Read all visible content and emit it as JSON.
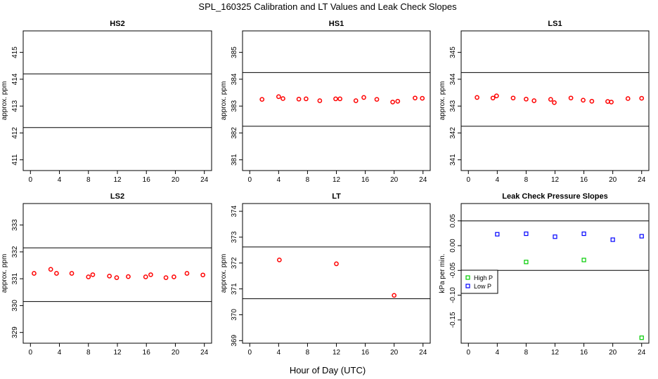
{
  "title": "SPL_160325  Calibration and LT Values and Leak Check Slopes",
  "xlabel_common": "Hour of Day (UTC)",
  "colors": {
    "red": "#ff0000",
    "green": "#00cc00",
    "blue": "#0000ff",
    "axis": "#000000"
  },
  "chart_data": [
    {
      "id": "hs2",
      "type": "scatter",
      "title": "HS2",
      "ylabel": "approx. ppm",
      "xlim": [
        -1,
        25
      ],
      "ylim": [
        410.6,
        415.8
      ],
      "xticks": [
        0,
        4,
        8,
        12,
        16,
        20,
        24
      ],
      "xtick_labels": [
        "0",
        "4",
        "8",
        "12",
        "16",
        "20",
        "24"
      ],
      "yticks": [
        411,
        412,
        413,
        414,
        415
      ],
      "ytick_labels": [
        "411",
        "412",
        "413",
        "414",
        "415"
      ],
      "hlines": [
        412.2,
        414.2
      ],
      "series": []
    },
    {
      "id": "hs1",
      "type": "scatter",
      "title": "HS1",
      "ylabel": "approx. ppm",
      "xlim": [
        -1,
        25
      ],
      "ylim": [
        380.6,
        385.8
      ],
      "xticks": [
        0,
        4,
        8,
        12,
        16,
        20,
        24
      ],
      "xtick_labels": [
        "0",
        "4",
        "8",
        "12",
        "16",
        "20",
        "24"
      ],
      "yticks": [
        381,
        382,
        383,
        384,
        385
      ],
      "ytick_labels": [
        "381",
        "382",
        "383",
        "384",
        "385"
      ],
      "hlines": [
        382.25,
        384.25
      ],
      "series": [
        {
          "name": "",
          "color": "#ff0000",
          "x": [
            1.7,
            4.0,
            4.6,
            6.8,
            7.8,
            9.7,
            11.9,
            12.5,
            14.7,
            15.8,
            17.6,
            19.8,
            20.5,
            22.9,
            23.9
          ],
          "y": [
            383.25,
            383.35,
            383.28,
            383.26,
            383.27,
            383.2,
            383.27,
            383.27,
            383.2,
            383.32,
            383.25,
            383.15,
            383.18,
            383.3,
            383.29
          ]
        }
      ]
    },
    {
      "id": "ls1",
      "type": "scatter",
      "title": "LS1",
      "ylabel": "approx. ppm",
      "xlim": [
        -1,
        25
      ],
      "ylim": [
        340.6,
        345.8
      ],
      "xticks": [
        0,
        4,
        8,
        12,
        16,
        20,
        24
      ],
      "xtick_labels": [
        "0",
        "4",
        "8",
        "12",
        "16",
        "20",
        "24"
      ],
      "yticks": [
        341,
        342,
        343,
        344,
        345
      ],
      "ytick_labels": [
        "341",
        "342",
        "343",
        "344",
        "345"
      ],
      "hlines": [
        342.25,
        344.25
      ],
      "series": [
        {
          "name": "",
          "color": "#ff0000",
          "x": [
            1.2,
            3.4,
            3.9,
            6.2,
            8.0,
            9.1,
            11.4,
            11.9,
            14.2,
            15.9,
            17.1,
            19.3,
            19.8,
            22.1,
            24.0
          ],
          "y": [
            343.32,
            343.3,
            343.38,
            343.3,
            343.26,
            343.2,
            343.25,
            343.13,
            343.3,
            343.22,
            343.18,
            343.17,
            343.15,
            343.28,
            343.29
          ]
        }
      ]
    },
    {
      "id": "ls2",
      "type": "scatter",
      "title": "LS2",
      "ylabel": "approx. ppm",
      "xlim": [
        -1,
        25
      ],
      "ylim": [
        328.6,
        333.8
      ],
      "xticks": [
        0,
        4,
        8,
        12,
        16,
        20,
        24
      ],
      "xtick_labels": [
        "0",
        "4",
        "8",
        "12",
        "16",
        "20",
        "24"
      ],
      "yticks": [
        329,
        330,
        331,
        332,
        333
      ],
      "ytick_labels": [
        "329",
        "330",
        "331",
        "332",
        "333"
      ],
      "hlines": [
        330.15,
        332.15
      ],
      "series": [
        {
          "name": "",
          "color": "#ff0000",
          "x": [
            0.5,
            2.8,
            3.6,
            5.7,
            8.0,
            8.6,
            10.9,
            11.9,
            13.5,
            15.9,
            16.6,
            18.7,
            19.8,
            21.6,
            23.8
          ],
          "y": [
            331.2,
            331.35,
            331.2,
            331.2,
            331.07,
            331.15,
            331.1,
            331.04,
            331.08,
            331.07,
            331.15,
            331.04,
            331.07,
            331.2,
            331.14
          ]
        }
      ]
    },
    {
      "id": "lt",
      "type": "scatter",
      "title": "LT",
      "ylabel": "approx. ppm",
      "xlim": [
        -1,
        25
      ],
      "ylim": [
        368.9,
        374.3
      ],
      "xticks": [
        0,
        4,
        8,
        12,
        16,
        20,
        24
      ],
      "xtick_labels": [
        "0",
        "4",
        "8",
        "12",
        "16",
        "20",
        "24"
      ],
      "yticks": [
        369,
        370,
        371,
        372,
        373,
        374
      ],
      "ytick_labels": [
        "369",
        "370",
        "371",
        "372",
        "373",
        "374"
      ],
      "hlines": [
        370.62,
        372.62
      ],
      "series": [
        {
          "name": "",
          "color": "#ff0000",
          "x": [
            4.1,
            12.0,
            20.0
          ],
          "y": [
            372.12,
            371.97,
            370.75
          ]
        }
      ]
    },
    {
      "id": "leak",
      "type": "scatter",
      "title": "Leak Check Pressure Slopes",
      "ylabel": "kPa per min.",
      "xlim": [
        -1,
        25
      ],
      "ylim": [
        -0.197,
        0.085
      ],
      "xticks": [
        0,
        4,
        8,
        12,
        16,
        20,
        24
      ],
      "xtick_labels": [
        "0",
        "4",
        "8",
        "12",
        "16",
        "20",
        "24"
      ],
      "yticks": [
        -0.15,
        -0.1,
        -0.05,
        0.0,
        0.05
      ],
      "ytick_labels": [
        "-0.15",
        "-0.10",
        "-0.05",
        "0.00",
        "0.05"
      ],
      "hlines": [
        -0.05,
        0.05
      ],
      "legend": {
        "position": "left",
        "entries": [
          "High P",
          "Low P"
        ]
      },
      "series": [
        {
          "name": "High P",
          "color": "#00cc00",
          "x": [
            8.0,
            16.0,
            24.0
          ],
          "y": [
            -0.033,
            -0.029,
            -0.186
          ]
        },
        {
          "name": "Low P",
          "color": "#0000ff",
          "x": [
            4.0,
            8.0,
            12.0,
            16.0,
            20.0,
            24.0
          ],
          "y": [
            0.023,
            0.024,
            0.018,
            0.024,
            0.012,
            0.019
          ]
        }
      ]
    }
  ]
}
